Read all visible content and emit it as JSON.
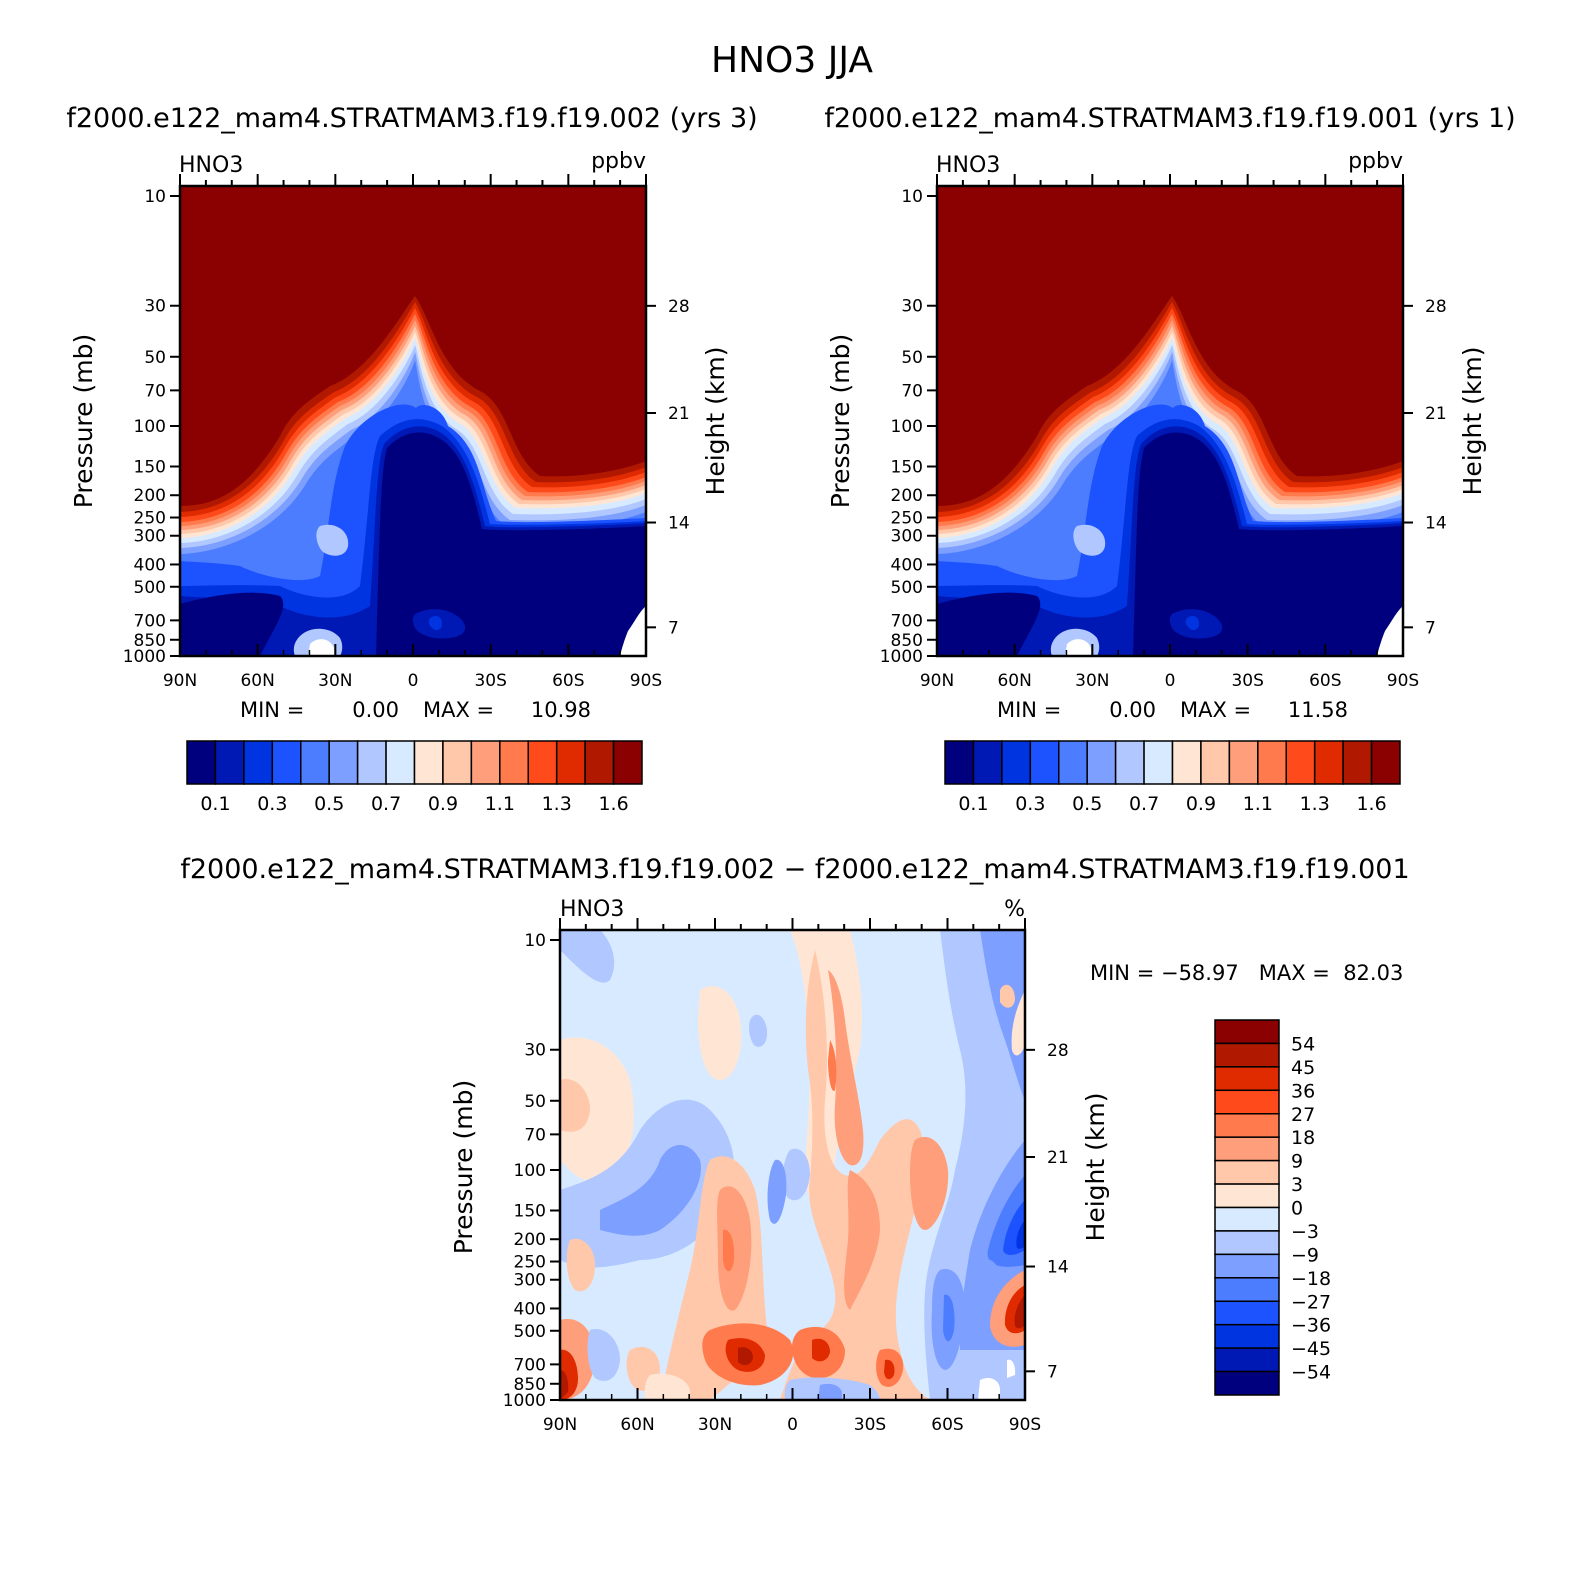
{
  "title": "HNO3 JJA",
  "panels": {
    "left": {
      "subtitle": "f2000.e122_mam4.STRATMAM3.f19.f19.002 (yrs 3)",
      "varname": "HNO3",
      "units": "ppbv",
      "min_label": "MIN =",
      "min_value": "0.00",
      "max_label": "MAX =",
      "max_value": "10.98"
    },
    "right": {
      "subtitle": "f2000.e122_mam4.STRATMAM3.f19.f19.001 (yrs 1)",
      "varname": "HNO3",
      "units": "ppbv",
      "min_label": "MIN =",
      "min_value": "0.00",
      "max_label": "MAX =",
      "max_value": "11.58"
    },
    "diff": {
      "subtitle": "f2000.e122_mam4.STRATMAM3.f19.f19.002 − f2000.e122_mam4.STRATMAM3.f19.f19.001",
      "varname": "HNO3",
      "units": "%",
      "minmax": "MIN = −58.97   MAX =  82.03"
    }
  },
  "chart_data": [
    {
      "type": "heatmap",
      "title": "f2000.e122_mam4.STRATMAM3.f19.f19.002 (yrs 3)",
      "xlabel": "",
      "ylabel": "Pressure (mb)",
      "ylabel_right": "Height (km)",
      "x_ticks": [
        "90N",
        "60N",
        "30N",
        "0",
        "30S",
        "60S",
        "90S"
      ],
      "y_ticks": [
        "10",
        "30",
        "50",
        "70",
        "100",
        "150",
        "200",
        "250",
        "300",
        "400",
        "500",
        "700",
        "850",
        "1000"
      ],
      "y_right_ticks": [
        "28",
        "21",
        "14",
        "7"
      ],
      "ylim": [
        1000,
        10
      ],
      "colorbar_labels": [
        "0.1",
        "0.3",
        "0.5",
        "0.7",
        "0.9",
        "1.1",
        "1.3",
        "1.6"
      ],
      "colorbar_colors": [
        "#00007f",
        "#0018b4",
        "#0034e0",
        "#1d52ff",
        "#4d7dff",
        "#7d9fff",
        "#b0c8ff",
        "#d8eaff",
        "#ffe6d4",
        "#ffc8aa",
        "#ff9e7a",
        "#ff7a4c",
        "#ff4a1c",
        "#e02a00",
        "#b01800",
        "#8b0000"
      ],
      "min": 0.0,
      "max": 10.98
    },
    {
      "type": "heatmap",
      "title": "f2000.e122_mam4.STRATMAM3.f19.f19.001 (yrs 1)",
      "xlabel": "",
      "ylabel": "Pressure (mb)",
      "ylabel_right": "Height (km)",
      "x_ticks": [
        "90N",
        "60N",
        "30N",
        "0",
        "30S",
        "60S",
        "90S"
      ],
      "y_ticks": [
        "10",
        "30",
        "50",
        "70",
        "100",
        "150",
        "200",
        "250",
        "300",
        "400",
        "500",
        "700",
        "850",
        "1000"
      ],
      "y_right_ticks": [
        "28",
        "21",
        "14",
        "7"
      ],
      "ylim": [
        1000,
        10
      ],
      "colorbar_labels": [
        "0.1",
        "0.3",
        "0.5",
        "0.7",
        "0.9",
        "1.1",
        "1.3",
        "1.6"
      ],
      "colorbar_colors": [
        "#00007f",
        "#0018b4",
        "#0034e0",
        "#1d52ff",
        "#4d7dff",
        "#7d9fff",
        "#b0c8ff",
        "#d8eaff",
        "#ffe6d4",
        "#ffc8aa",
        "#ff9e7a",
        "#ff7a4c",
        "#ff4a1c",
        "#e02a00",
        "#b01800",
        "#8b0000"
      ],
      "min": 0.0,
      "max": 11.58
    },
    {
      "type": "heatmap",
      "title": "f2000.e122_mam4.STRATMAM3.f19.f19.002 − f2000.e122_mam4.STRATMAM3.f19.f19.001",
      "xlabel": "",
      "ylabel": "Pressure (mb)",
      "ylabel_right": "Height (km)",
      "x_ticks": [
        "90N",
        "60N",
        "30N",
        "0",
        "30S",
        "60S",
        "90S"
      ],
      "y_ticks": [
        "10",
        "30",
        "50",
        "70",
        "100",
        "150",
        "200",
        "250",
        "300",
        "400",
        "500",
        "700",
        "850",
        "1000"
      ],
      "y_right_ticks": [
        "28",
        "21",
        "14",
        "7"
      ],
      "ylim": [
        1000,
        10
      ],
      "colorbar_labels": [
        "54",
        "45",
        "36",
        "27",
        "18",
        "9",
        "3",
        "0",
        "−3",
        "−9",
        "−18",
        "−27",
        "−36",
        "−45",
        "−54"
      ],
      "colorbar_colors": [
        "#8b0000",
        "#b01800",
        "#e02a00",
        "#ff4a1c",
        "#ff7a4c",
        "#ff9e7a",
        "#ffc8aa",
        "#ffe6d4",
        "#d8eaff",
        "#b0c8ff",
        "#7d9fff",
        "#4d7dff",
        "#1d52ff",
        "#0034e0",
        "#0018b4",
        "#00007f"
      ],
      "min": -58.97,
      "max": 82.03
    }
  ]
}
